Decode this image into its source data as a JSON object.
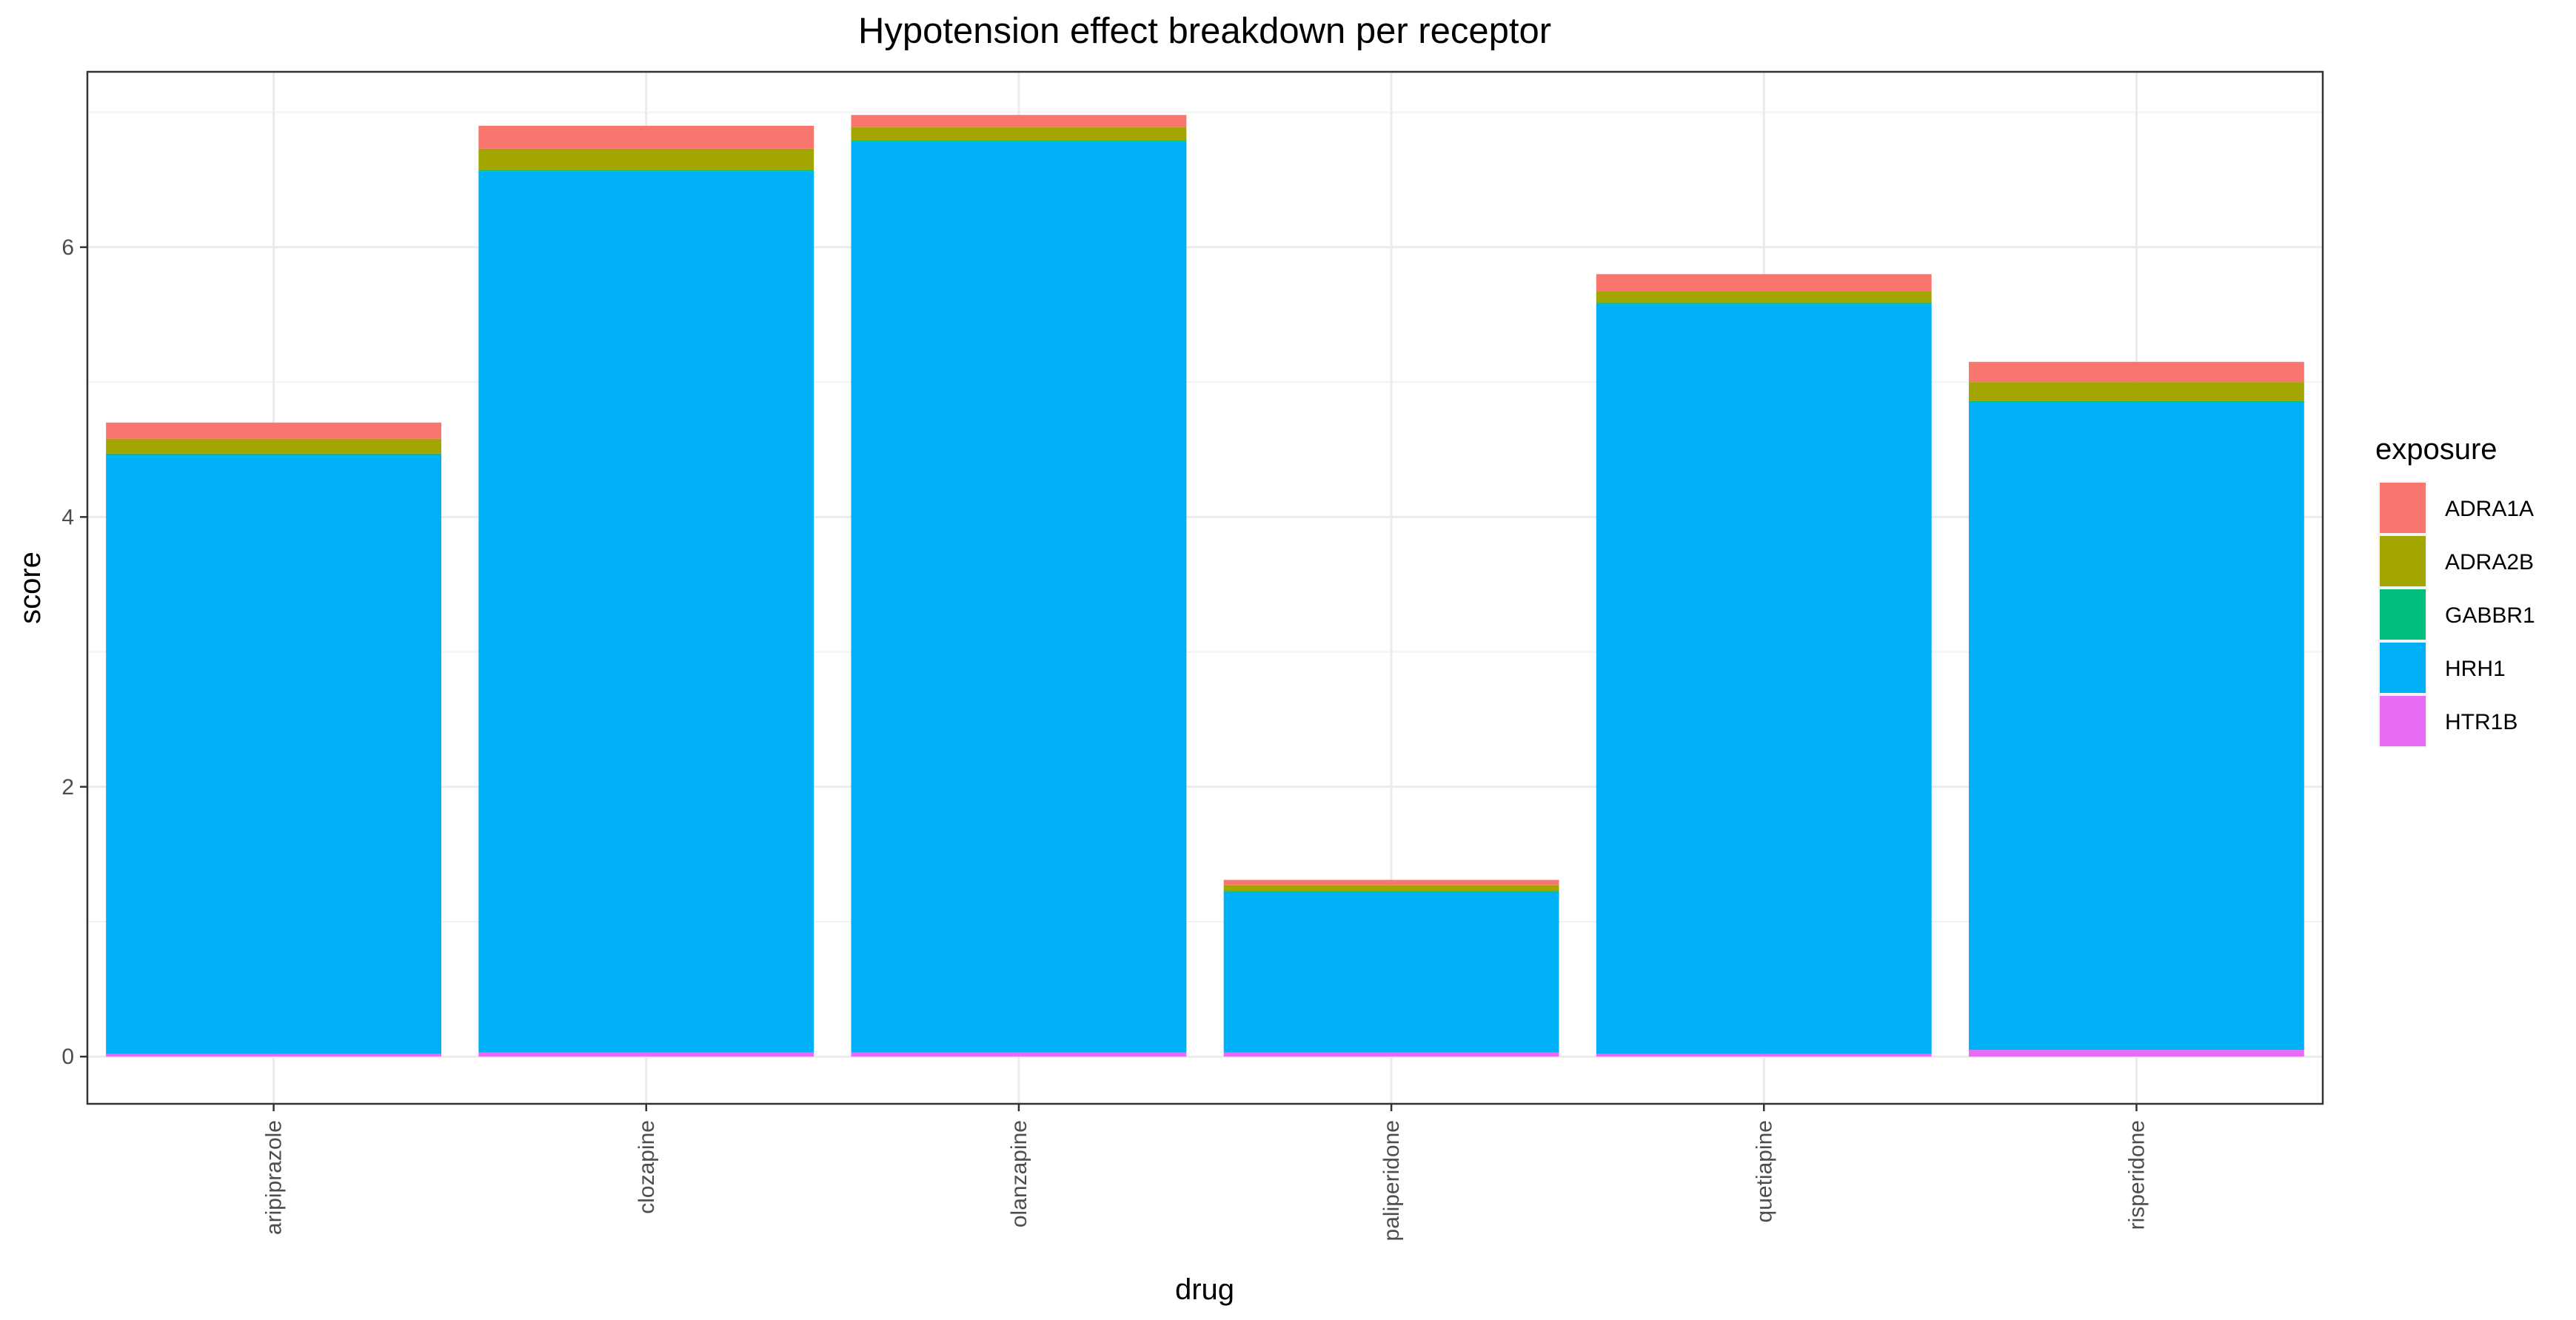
{
  "chart_data": {
    "type": "bar",
    "stacked": true,
    "title": "Hypotension effect breakdown per receptor",
    "xlabel": "drug",
    "ylabel": "score",
    "ylim": [
      -0.35,
      7.3
    ],
    "yticks": [
      0,
      2,
      4,
      6
    ],
    "grid": true,
    "legend_title": "exposure",
    "legend_position": "right",
    "categories": [
      "aripiprazole",
      "clozapine",
      "olanzapine",
      "paliperidone",
      "quetiapine",
      "risperidone"
    ],
    "series": [
      {
        "name": "HTR1B",
        "color": "#E76BF3",
        "values": [
          0.02,
          0.03,
          0.03,
          0.03,
          0.02,
          0.05
        ]
      },
      {
        "name": "HRH1",
        "color": "#00B0F6",
        "values": [
          4.44,
          6.53,
          6.75,
          1.19,
          5.56,
          4.8
        ]
      },
      {
        "name": "GABBR1",
        "color": "#00BF7D",
        "values": [
          0.01,
          0.01,
          0.01,
          0.01,
          0.01,
          0.01
        ]
      },
      {
        "name": "ADRA2B",
        "color": "#A3A500",
        "values": [
          0.11,
          0.16,
          0.1,
          0.04,
          0.08,
          0.14
        ]
      },
      {
        "name": "ADRA1A",
        "color": "#F8766D",
        "values": [
          0.12,
          0.17,
          0.09,
          0.04,
          0.13,
          0.15
        ]
      }
    ],
    "legend_order": [
      "ADRA1A",
      "ADRA2B",
      "GABBR1",
      "HRH1",
      "HTR1B"
    ]
  }
}
